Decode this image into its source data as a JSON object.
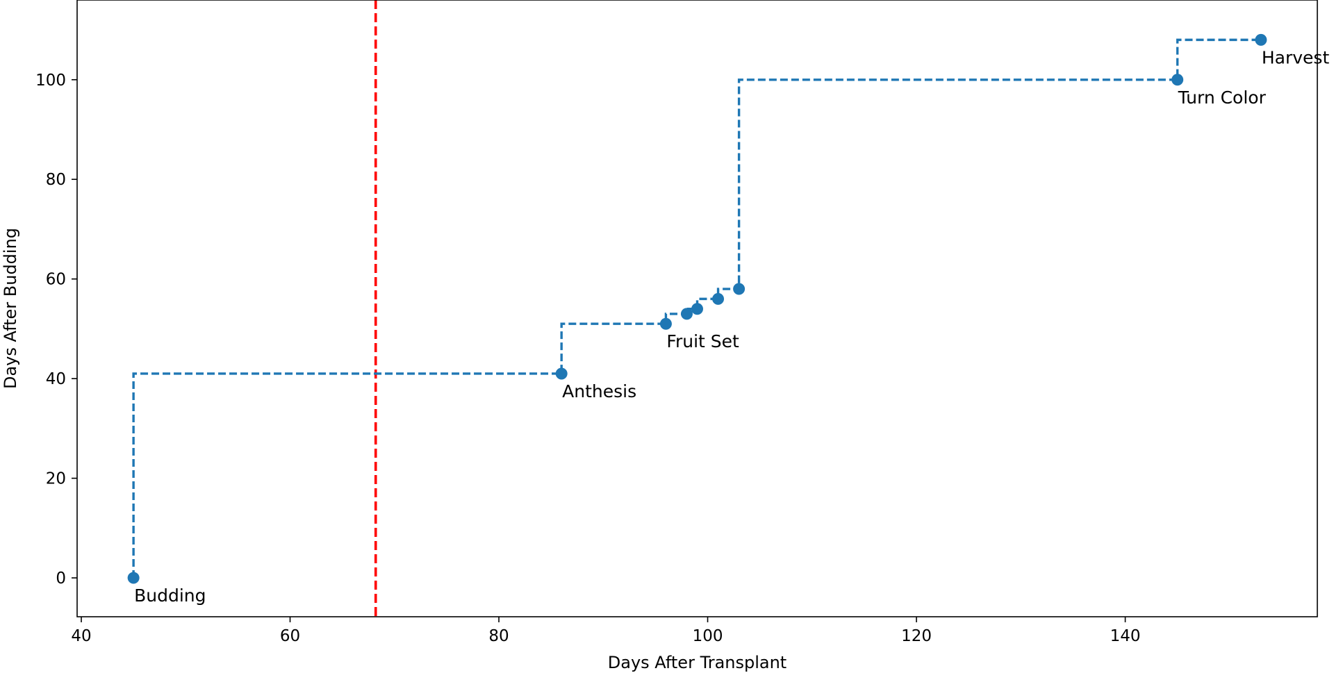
{
  "chart_data": {
    "type": "line",
    "title": "",
    "xlabel": "Days After Transplant",
    "ylabel": "Days After Budding",
    "xlim": [
      39.6,
      158.4
    ],
    "ylim": [
      -7.8,
      116.0
    ],
    "xticks": [
      40,
      60,
      80,
      100,
      120,
      140
    ],
    "yticks": [
      0,
      20,
      40,
      60,
      80,
      100
    ],
    "grid": false,
    "legend": "none",
    "series": [
      {
        "style": "step-post, dashed line with circle markers",
        "color": "#1f77b4",
        "x": [
          45,
          86,
          96,
          98,
          99,
          101,
          103,
          145,
          153
        ],
        "y": [
          0,
          41,
          51,
          53,
          54,
          56,
          58,
          100,
          108
        ]
      }
    ],
    "annotations": [
      {
        "text": "Budding",
        "x": 45,
        "y": 0
      },
      {
        "text": "Anthesis",
        "x": 86,
        "y": 41
      },
      {
        "text": "Fruit Set",
        "x": 96,
        "y": 51
      },
      {
        "text": "Turn Color",
        "x": 145,
        "y": 100
      },
      {
        "text": "Harvest",
        "x": 153,
        "y": 108
      }
    ],
    "vertical_lines": [
      {
        "x": 68.2,
        "color": "#ff0000",
        "style": "dashed"
      }
    ]
  }
}
